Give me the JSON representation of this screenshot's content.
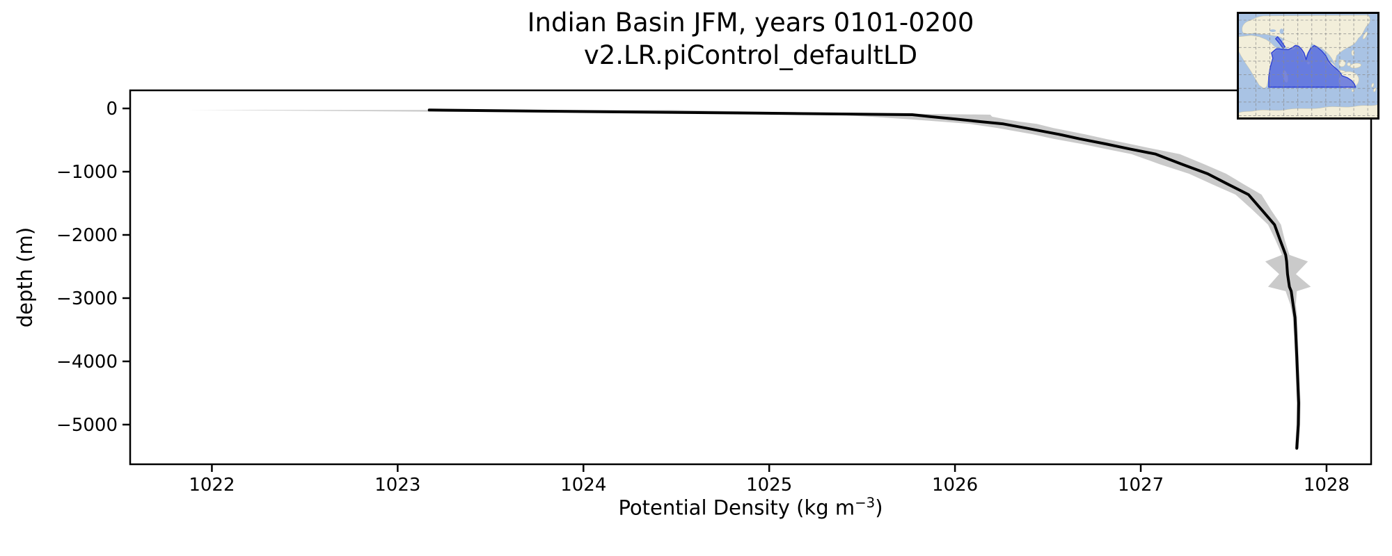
{
  "figure": {
    "background_color": "#ffffff",
    "title_line1": "Indian Basin JFM, years 0101-0200",
    "title_line2": "v2.LR.piControl_defaultLD"
  },
  "chart_data": {
    "type": "line",
    "title": "Indian Basin JFM, years 0101-0200",
    "subtitle": "v2.LR.piControl_defaultLD",
    "xlabel_prefix": "Potential Density (kg m",
    "xlabel_sup": "−3",
    "xlabel_suffix": ")",
    "ylabel": "depth (m)",
    "xlim": [
      1021.56,
      1028.24
    ],
    "ylim": [
      -5627,
      286
    ],
    "x_ticks": [
      1022,
      1023,
      1024,
      1025,
      1026,
      1027,
      1028
    ],
    "y_ticks": [
      0,
      -1000,
      -2000,
      -3000,
      -4000,
      -5000
    ],
    "grid": false,
    "legend": "none",
    "line_color": "#000000",
    "line_width": 4,
    "band_color": "#cacaca",
    "frame_color": "#000000",
    "profile": {
      "depth_m": [
        -25,
        -50,
        -75,
        -99,
        -130,
        -170,
        -210,
        -245,
        -310,
        -410,
        -480,
        -560,
        -640,
        -722,
        -880,
        -1033,
        -1200,
        -1363,
        -1600,
        -1839,
        -2080,
        -2315,
        -2420,
        -2620,
        -2820,
        -2890,
        -3100,
        -3305,
        -3600,
        -3927,
        -4300,
        -4659,
        -5000,
        -5374
      ],
      "density_mean": [
        1023.17,
        1024.05,
        1024.93,
        1025.77,
        1025.87,
        1026.01,
        1026.14,
        1026.26,
        1026.38,
        1026.56,
        1026.67,
        1026.81,
        1026.94,
        1027.08,
        1027.22,
        1027.36,
        1027.47,
        1027.58,
        1027.65,
        1027.72,
        1027.75,
        1027.78,
        1027.785,
        1027.79,
        1027.8,
        1027.81,
        1027.82,
        1027.83,
        1027.835,
        1027.84,
        1027.845,
        1027.85,
        1027.848,
        1027.84
      ],
      "density_std": [
        1.3,
        0.9,
        0.6,
        0.42,
        0.33,
        0.26,
        0.21,
        0.18,
        0.15,
        0.14,
        0.14,
        0.13,
        0.13,
        0.13,
        0.12,
        0.1,
        0.085,
        0.07,
        0.05,
        0.035,
        0.025,
        0.02,
        0.115,
        0.045,
        0.115,
        0.03,
        0.015,
        0.012,
        0.01,
        0.01,
        0.01,
        0.01,
        0.01,
        0.01
      ]
    },
    "series": [
      {
        "name": "mean potential density profile",
        "style": "solid black line"
      },
      {
        "name": "±1 std spread band",
        "style": "light gray fill"
      }
    ]
  },
  "inset_map": {
    "name": "indian-basin-location-map",
    "ocean_color": "#a9c3e4",
    "land_color": "#f2eeda",
    "coast_color": "#c9c2a4",
    "region_fill_color": "#5568de",
    "region_edge_color": "#2b3fd6",
    "grid_color": "#8a8a8a",
    "border_color": "#000000"
  }
}
